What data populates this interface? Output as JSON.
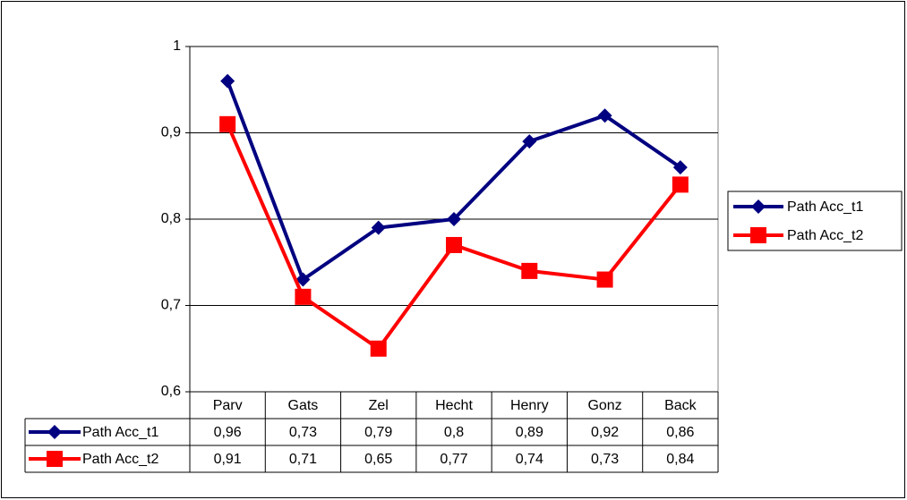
{
  "chart_data": {
    "type": "line",
    "categories": [
      "Parv",
      "Gats",
      "Zel",
      "Hecht",
      "Henry",
      "Gonz",
      "Back"
    ],
    "series": [
      {
        "name": "Path Acc_t1",
        "color": "#000080",
        "marker": "diamond",
        "values": [
          0.96,
          0.73,
          0.79,
          0.8,
          0.89,
          0.92,
          0.86
        ],
        "value_labels": [
          "0,96",
          "0,73",
          "0,79",
          "0,8",
          "0,89",
          "0,92",
          "0,86"
        ]
      },
      {
        "name": "Path Acc_t2",
        "color": "#ff0000",
        "marker": "square",
        "values": [
          0.91,
          0.71,
          0.65,
          0.77,
          0.74,
          0.73,
          0.84
        ],
        "value_labels": [
          "0,91",
          "0,71",
          "0,65",
          "0,77",
          "0,74",
          "0,73",
          "0,84"
        ]
      }
    ],
    "ylim": [
      0.6,
      1
    ],
    "yticks": [
      {
        "value": 0.6,
        "label": "0,6"
      },
      {
        "value": 0.7,
        "label": "0,7"
      },
      {
        "value": 0.8,
        "label": "0,8"
      },
      {
        "value": 0.9,
        "label": "0,9"
      },
      1
    ],
    "grid": true,
    "legend": "right",
    "data_table": true
  }
}
